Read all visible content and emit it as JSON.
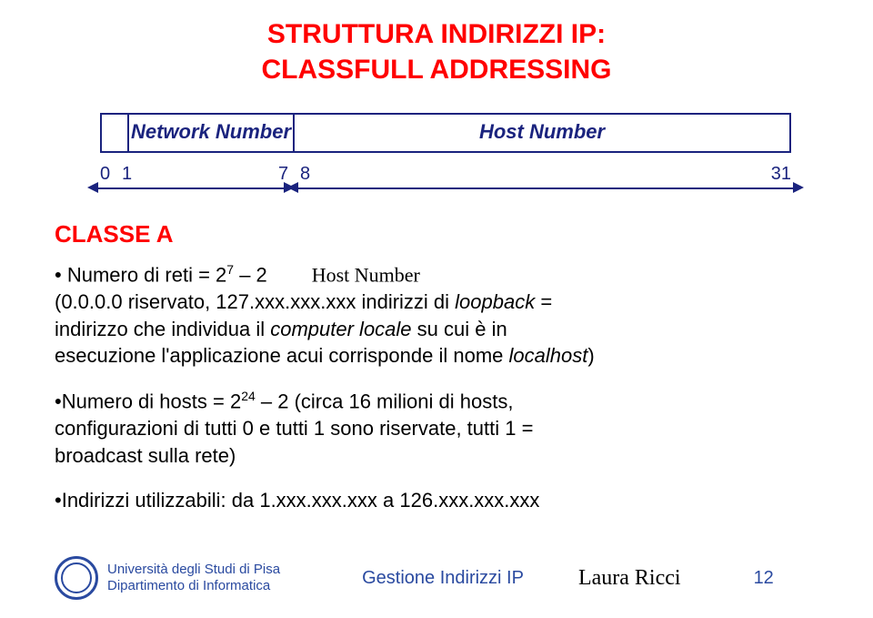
{
  "title_line1": "STRUTTURA INDIRIZZI IP:",
  "title_line2": "CLASSFULL ADDRESSING",
  "diagram": {
    "network_label": "Network Number",
    "host_label": "Host Number",
    "ticks": {
      "n0": "0",
      "n1": "1",
      "n7": "7",
      "n8": "8",
      "n31": "31"
    }
  },
  "class_label": "CLASSE A",
  "line1_pre": "• Numero di reti = 2",
  "line1_sup": "7",
  "line1_post": " – 2",
  "line1_hostnum": "Host Number",
  "line2": "(0.0.0.0 riservato, 127.xxx.xxx.xxx indirizzi di ",
  "line2_it": "loopback",
  "line2_post": " =",
  "line3_a": "indirizzo che   individua il ",
  "line3_it": "computer locale",
  "line3_b": " su cui è in",
  "line4": "esecuzione l'applicazione acui corrisponde il nome ",
  "line4_it": "localhost",
  "line4_post": ")",
  "b2_pre": "•Numero di hosts = 2",
  "b2_sup": "24",
  "b2_post": " – 2 (circa 16 milioni di hosts,",
  "b2_l2": "configurazioni di tutti 0 e tutti 1 sono riservate, tutti 1 =",
  "b2_l3": "broadcast sulla rete)",
  "b3": "•Indirizzi utilizzabili: da 1.xxx.xxx.xxx a 126.xxx.xxx.xxx",
  "footer": {
    "uni1": "Università degli Studi di Pisa",
    "uni2": "Dipartimento di Informatica",
    "title": "Gestione Indirizzi IP",
    "author": "Laura Ricci",
    "page": "12"
  },
  "colors": {
    "red": "#ff0000",
    "navy": "#1a237e",
    "blue": "#2a4aa0",
    "black": "#000000",
    "bg": "#ffffff"
  }
}
